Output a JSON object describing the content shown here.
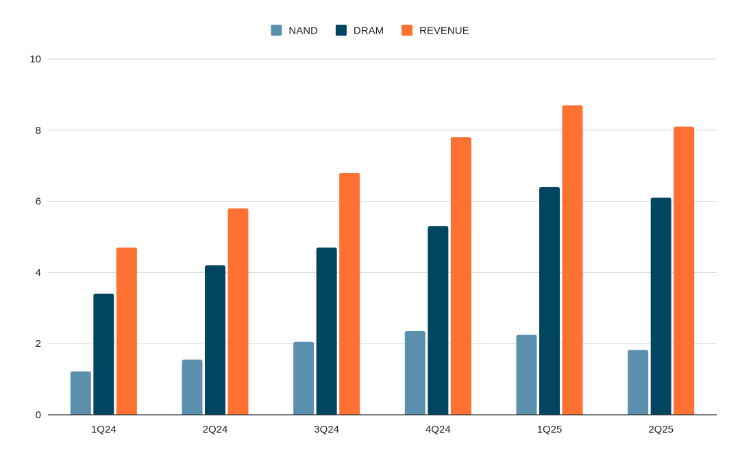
{
  "chart_data": {
    "type": "bar",
    "title": "",
    "xlabel": "",
    "ylabel": "",
    "categories": [
      "1Q24",
      "2Q24",
      "3Q24",
      "4Q24",
      "1Q25",
      "2Q25"
    ],
    "series": [
      {
        "name": "NAND",
        "color": "#5a8fae",
        "values": [
          1.22,
          1.55,
          2.05,
          2.35,
          2.25,
          1.82
        ]
      },
      {
        "name": "DRAM",
        "color": "#024561",
        "values": [
          3.4,
          4.2,
          4.7,
          5.3,
          6.4,
          6.1
        ]
      },
      {
        "name": "REVENUE",
        "color": "#ff7033",
        "values": [
          4.7,
          5.8,
          6.8,
          7.8,
          8.7,
          8.1
        ]
      }
    ],
    "ylim": [
      0,
      10
    ],
    "yticks": [
      0,
      2,
      4,
      6,
      8,
      10
    ],
    "grid": true,
    "legend_position": "top-center"
  }
}
